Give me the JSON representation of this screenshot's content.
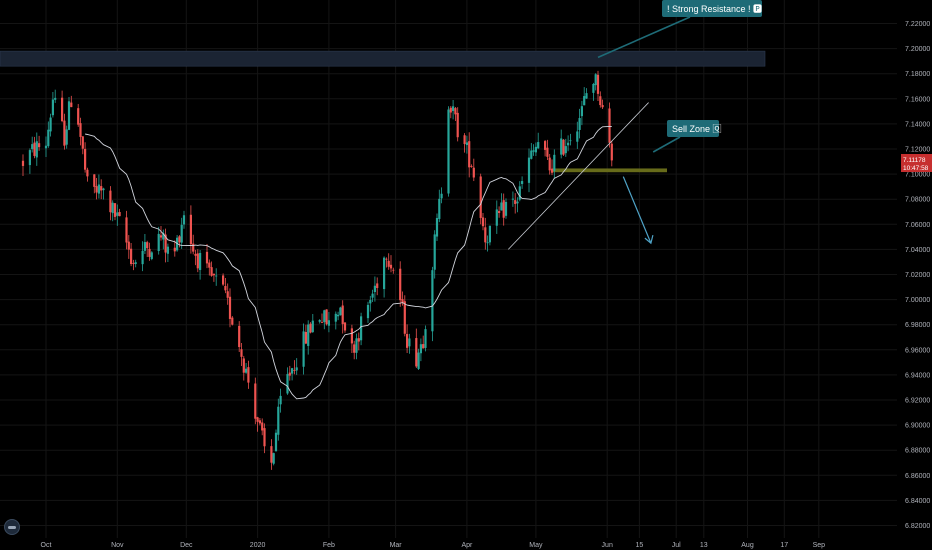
{
  "chart_data": {
    "type": "candlestick",
    "y_axis_ticks": [
      "7.22000",
      "7.20000",
      "7.18000",
      "7.16000",
      "7.14000",
      "7.12000",
      "7.10000",
      "7.08000",
      "7.06000",
      "7.04000",
      "7.02000",
      "7.00000",
      "6.98000",
      "6.96000",
      "6.94000",
      "6.92000",
      "6.90000",
      "6.88000",
      "6.86000",
      "6.84000",
      "6.82000"
    ],
    "ylim": [
      6.812,
      7.235
    ],
    "x_axis_ticks": [
      "Oct",
      "Nov",
      "Dec",
      "2020",
      "Feb",
      "Mar",
      "Apr",
      "May",
      "Jun",
      "15",
      "Jul",
      "13",
      "Aug",
      "17",
      "Sep"
    ],
    "x_tick_days": [
      0,
      31,
      61,
      92,
      123,
      152,
      183,
      213,
      244,
      258,
      274,
      286,
      305,
      321,
      336
    ],
    "price_path": [
      [
        -10,
        7.11
      ],
      [
        -5,
        7.12
      ],
      [
        0,
        7.125
      ],
      [
        3,
        7.16
      ],
      [
        8,
        7.13
      ],
      [
        12,
        7.17
      ],
      [
        18,
        7.09
      ],
      [
        25,
        7.085
      ],
      [
        32,
        7.06
      ],
      [
        38,
        7.03
      ],
      [
        43,
        7.04
      ],
      [
        50,
        7.05
      ],
      [
        55,
        7.03
      ],
      [
        60,
        7.07
      ],
      [
        64,
        7.04
      ],
      [
        70,
        7.02
      ],
      [
        76,
        7.01
      ],
      [
        82,
        6.98
      ],
      [
        86,
        6.95
      ],
      [
        90,
        6.92
      ],
      [
        95,
        6.88
      ],
      [
        98,
        6.87
      ],
      [
        103,
        6.93
      ],
      [
        108,
        6.95
      ],
      [
        113,
        6.97
      ],
      [
        118,
        6.99
      ],
      [
        123,
        6.98
      ],
      [
        128,
        6.995
      ],
      [
        133,
        6.96
      ],
      [
        138,
        6.985
      ],
      [
        143,
        7.01
      ],
      [
        148,
        7.04
      ],
      [
        152,
        7.02
      ],
      [
        157,
        6.97
      ],
      [
        160,
        6.95
      ],
      [
        164,
        6.97
      ],
      [
        168,
        7.03
      ],
      [
        172,
        7.09
      ],
      [
        175,
        7.16
      ],
      [
        180,
        7.13
      ],
      [
        185,
        7.11
      ],
      [
        188,
        7.08
      ],
      [
        191,
        7.05
      ],
      [
        195,
        7.06
      ],
      [
        200,
        7.075
      ],
      [
        205,
        7.08
      ],
      [
        210,
        7.11
      ],
      [
        214,
        7.125
      ],
      [
        219,
        7.105
      ],
      [
        224,
        7.12
      ],
      [
        229,
        7.135
      ],
      [
        233,
        7.15
      ],
      [
        237,
        7.18
      ],
      [
        240,
        7.17
      ],
      [
        243,
        7.14
      ],
      [
        246,
        7.115
      ]
    ],
    "sma_length": 20,
    "current_price": "7.11178",
    "current_time": "10:47:58",
    "resistance_zone": {
      "from": 7.186,
      "to": 7.198
    },
    "sell_zone": {
      "from": 7.1015,
      "to": 7.1045,
      "start_day": 220,
      "end_day": 270
    },
    "trendline": {
      "start": [
        201,
        7.04
      ],
      "end": [
        262,
        7.157
      ]
    },
    "arrow": {
      "start": [
        251,
        7.098
      ],
      "end": [
        263,
        7.045
      ]
    },
    "annotations": [
      {
        "text": "! Strong Resistance ! 🅿",
        "anchor_day": 240,
        "anchor_price": 7.193
      },
      {
        "text": "Sell Zone 🅀",
        "anchor_day": 264,
        "anchor_price": 7.12
      }
    ],
    "colors": {
      "up": "#26a69a",
      "down": "#ef5350",
      "sma": "#d1d4dc",
      "resistance_zone": "#1b2433",
      "sell_zone": "#676b1a",
      "callout": "#1e6b77",
      "trendline": "#c8ccd4",
      "arrow": "#4fa3c7",
      "price_tag": "#c62f2f",
      "grid": "#141414"
    }
  },
  "callouts": {
    "resistance": "! Strong Resistance ! 🅿",
    "sell_zone": "Sell Zone 🅀"
  }
}
